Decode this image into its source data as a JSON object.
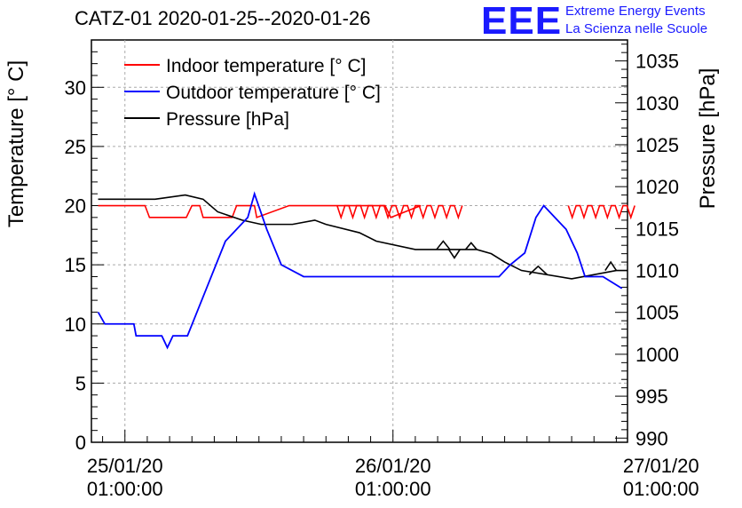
{
  "header": {
    "title": "CATZ-01 2020-01-25--2020-01-26",
    "logo": "EEE",
    "logo_line1": "Extreme Energy Events",
    "logo_line2": "La Scienza nelle Scuole"
  },
  "colors": {
    "indoor": "#ff0000",
    "outdoor": "#0000ff",
    "pressure": "#000000",
    "logo": "#1a1aff",
    "grid": "#aaaaaa"
  },
  "chart_data": {
    "type": "line",
    "ylabel": "Temperature [° C]",
    "y2label": "Pressure [hPa]",
    "ylim": [
      0,
      34
    ],
    "y2lim": [
      989.5,
      1037.5
    ],
    "yticks": [
      0,
      5,
      10,
      15,
      20,
      25,
      30
    ],
    "y2ticks": [
      990,
      995,
      1000,
      1005,
      1010,
      1015,
      1020,
      1025,
      1030,
      1035
    ],
    "xlim_hours": [
      -3,
      45
    ],
    "xticks": [
      {
        "hours": 0,
        "line1": "25/01/20",
        "line2": "01:00:00"
      },
      {
        "hours": 24,
        "line1": "26/01/20",
        "line2": "01:00:00"
      },
      {
        "hours": 48,
        "line1": "27/01/20",
        "line2": "01:00:00"
      }
    ],
    "grid": true,
    "legend_position": "top-left",
    "series": [
      {
        "name": "Indoor temperature [° C]",
        "axis": "left",
        "color": "#ff0000",
        "x": [
          -2.4,
          1.8,
          2.2,
          5.5,
          6.0,
          6.7,
          7.0,
          9.6,
          10.0,
          11.6,
          11.8,
          14.7,
          15.3,
          15.8,
          23.3,
          23.8,
          26.5
        ],
        "y": [
          20,
          20,
          19,
          19,
          20,
          20,
          19,
          19,
          20,
          20,
          19,
          20,
          20,
          20,
          20,
          19,
          20
        ],
        "zigzag_ranges": [
          [
            19.0,
            29.8
          ],
          [
            39.7,
            45.0
          ]
        ]
      },
      {
        "name": "Outdoor temperature [° C]",
        "axis": "left",
        "color": "#0000ff",
        "x": [
          -2.4,
          -1.8,
          0.8,
          1.0,
          3.3,
          3.8,
          4.3,
          5.6,
          7.3,
          9.0,
          11.0,
          11.6,
          12.7,
          14.0,
          16.0,
          22.0,
          30.5,
          33.5,
          34.5,
          35.8,
          36.8,
          37.5,
          38.5,
          39.5,
          40.5,
          41.2,
          42.8,
          44.5
        ],
        "y": [
          11,
          10,
          10,
          9,
          9,
          8,
          9,
          9,
          13,
          17,
          19,
          21,
          18,
          15,
          14,
          14,
          14,
          14,
          15,
          16,
          19,
          20,
          19,
          18,
          16,
          14,
          14,
          13
        ]
      },
      {
        "name": "Pressure [hPa]",
        "axis": "right",
        "color": "#000000",
        "x": [
          -2.4,
          2.7,
          5.4,
          7.0,
          8.3,
          10.5,
          12.2,
          15.0,
          17.0,
          18.0,
          21.0,
          22.5,
          26.0,
          31.5,
          32.8,
          34.0,
          35.5,
          40.0,
          44.0,
          45.0
        ],
        "y": [
          1018.5,
          1018.5,
          1019.0,
          1018.5,
          1017.0,
          1016.0,
          1015.5,
          1015.5,
          1016.0,
          1015.5,
          1014.5,
          1013.5,
          1012.5,
          1012.5,
          1012.0,
          1011.0,
          1010.0,
          1009.0,
          1010.0,
          1010.0
        ],
        "bumps": [
          [
            28.5,
            1012.5,
            1013.5,
            0.6
          ],
          [
            29.5,
            1012.5,
            1011.5,
            0.5
          ],
          [
            31.0,
            1012.5,
            1013.3,
            0.5
          ],
          [
            37.0,
            1009.5,
            1010.5,
            0.8
          ],
          [
            43.5,
            1010.0,
            1011.0,
            0.5
          ]
        ]
      }
    ]
  }
}
